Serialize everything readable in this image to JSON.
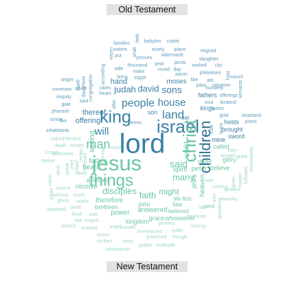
{
  "labels": {
    "top": "Old Testament",
    "bottom": "New Testament"
  },
  "colors": {
    "ot_dark": "#2b6f94",
    "ot_mid": "#3b7fa5",
    "ot_light": "#5d9bbd",
    "nt_teal": "#3fb08c",
    "nt_mid": "#6cc6a2",
    "nt_light": "#9ed9bf",
    "header_bg": "#e2e2e2"
  },
  "words": [
    {
      "t": "lord",
      "g": "ot",
      "s": "xl"
    },
    {
      "t": "jesus",
      "g": "nt",
      "s": "xl"
    },
    {
      "t": "israel",
      "g": "ot",
      "s": "l"
    },
    {
      "t": "things",
      "g": "nt",
      "s": "l"
    },
    {
      "t": "king",
      "g": "ot",
      "s": "l"
    },
    {
      "t": "christ",
      "g": "nt",
      "s": "l"
    },
    {
      "t": "children",
      "g": "ot",
      "s": "l"
    },
    {
      "t": "land",
      "g": "ot",
      "s": "m"
    },
    {
      "t": "man",
      "g": "nt",
      "s": "m"
    },
    {
      "t": "people",
      "g": "ot",
      "s": "m"
    },
    {
      "t": "house",
      "g": "ot",
      "s": "m"
    },
    {
      "t": "sons",
      "g": "ot",
      "s": "m"
    },
    {
      "t": "will",
      "g": "ot",
      "s": "m"
    },
    {
      "t": "disciples",
      "g": "nt",
      "s": "m"
    },
    {
      "t": "faith",
      "g": "nt",
      "s": "m"
    },
    {
      "t": "said",
      "g": "nt",
      "s": "m"
    },
    {
      "t": "david",
      "g": "ot",
      "s": "m"
    },
    {
      "t": "judah",
      "g": "ot",
      "s": "m"
    },
    {
      "t": "hand",
      "g": "ot",
      "s": "m"
    },
    {
      "t": "many",
      "g": "nt",
      "s": "m"
    },
    {
      "t": "might",
      "g": "nt",
      "s": "m"
    },
    {
      "t": "moses",
      "g": "ot",
      "s": "s"
    },
    {
      "t": "offering",
      "g": "ot",
      "s": "s"
    },
    {
      "t": "thereof",
      "g": "ot",
      "s": "s"
    },
    {
      "t": "saying",
      "g": "nt",
      "s": "s"
    },
    {
      "t": "father",
      "g": "nt",
      "s": "s"
    },
    {
      "t": "heard",
      "g": "nt",
      "s": "s"
    },
    {
      "t": "spirit",
      "g": "nt",
      "s": "s"
    },
    {
      "t": "world",
      "g": "nt",
      "s": "s"
    },
    {
      "t": "peter",
      "g": "nt",
      "s": "s"
    },
    {
      "t": "jews",
      "g": "nt",
      "s": "s"
    },
    {
      "t": "heaven",
      "g": "nt",
      "s": "s"
    },
    {
      "t": "another",
      "g": "nt",
      "s": "s"
    },
    {
      "t": "receive",
      "g": "nt",
      "s": "s"
    },
    {
      "t": "therefore",
      "g": "nt",
      "s": "s"
    },
    {
      "t": "john",
      "g": "nt",
      "s": "s"
    },
    {
      "t": "law",
      "g": "nt",
      "s": "s"
    },
    {
      "t": "life",
      "g": "nt",
      "s": "s"
    },
    {
      "t": "first",
      "g": "nt",
      "s": "s"
    },
    {
      "t": "power",
      "g": "nt",
      "s": "s"
    },
    {
      "t": "kingdom",
      "g": "nt",
      "s": "s"
    },
    {
      "t": "brethren",
      "g": "nt",
      "s": "s"
    },
    {
      "t": "grace",
      "g": "nt",
      "s": "s"
    },
    {
      "t": "whosoever",
      "g": "nt",
      "s": "s"
    },
    {
      "t": "answered",
      "g": "nt",
      "s": "s"
    },
    {
      "t": "believed",
      "g": "nt",
      "s": "s"
    },
    {
      "t": "dead",
      "g": "nt",
      "s": "s"
    },
    {
      "t": "called",
      "g": "nt",
      "s": "s"
    },
    {
      "t": "glory",
      "g": "nt",
      "s": "s"
    },
    {
      "t": "believe",
      "g": "nt",
      "s": "s"
    },
    {
      "t": "mine",
      "g": "ot",
      "s": "s"
    },
    {
      "t": "son",
      "g": "ot",
      "s": "s"
    },
    {
      "t": "set",
      "g": "ot",
      "s": "s"
    },
    {
      "t": "kings",
      "g": "ot",
      "s": "s"
    },
    {
      "t": "fathers",
      "g": "ot",
      "s": "s"
    },
    {
      "t": "brought",
      "g": "ot",
      "s": "s"
    },
    {
      "t": "hosts",
      "g": "ot",
      "s": "s"
    },
    {
      "t": "sword",
      "g": "ot",
      "s": "s"
    },
    {
      "t": "sent",
      "g": "nt",
      "s": "s"
    },
    {
      "t": "cities",
      "g": "ot",
      "s": "xs"
    },
    {
      "t": "heart",
      "g": "ot",
      "s": "xs"
    },
    {
      "t": "silver",
      "g": "ot",
      "s": "xs"
    },
    {
      "t": "covenant",
      "g": "ot",
      "s": "xs"
    },
    {
      "t": "gate",
      "g": "ot",
      "s": "xs"
    },
    {
      "t": "saul",
      "g": "ot",
      "s": "xs"
    },
    {
      "t": "iniquity",
      "g": "ot",
      "s": "xs"
    },
    {
      "t": "pharaoh",
      "g": "ot",
      "s": "xs"
    },
    {
      "t": "smote",
      "g": "ot",
      "s": "xs"
    },
    {
      "t": "two",
      "g": "ot",
      "s": "xs"
    },
    {
      "t": "inhabitants",
      "g": "ot",
      "s": "xs"
    },
    {
      "t": "anger",
      "g": "ot",
      "s": "xs"
    },
    {
      "t": "families",
      "g": "ot",
      "s": "xs"
    },
    {
      "t": "babylon",
      "g": "ot",
      "s": "xs"
    },
    {
      "t": "cubits",
      "g": "ot",
      "s": "xs"
    },
    {
      "t": "waters",
      "g": "ot",
      "s": "xs"
    },
    {
      "t": "shalt",
      "g": "ot",
      "s": "xs"
    },
    {
      "t": "surely",
      "g": "ot",
      "s": "xs"
    },
    {
      "t": "place",
      "g": "ot",
      "s": "xs"
    },
    {
      "t": "reigned",
      "g": "ot",
      "s": "xs"
    },
    {
      "t": "tabernacle",
      "g": "ot",
      "s": "xs"
    },
    {
      "t": "daughter",
      "g": "ot",
      "s": "xs"
    },
    {
      "t": "princes",
      "g": "ot",
      "s": "xs"
    },
    {
      "t": "year",
      "g": "ot",
      "s": "xs"
    },
    {
      "t": "jacob",
      "g": "ot",
      "s": "xs"
    },
    {
      "t": "wicked",
      "g": "ot",
      "s": "xs"
    },
    {
      "t": "city",
      "g": "ot",
      "s": "xs"
    },
    {
      "t": "thousand",
      "g": "ot",
      "s": "xs"
    },
    {
      "t": "side",
      "g": "ot",
      "s": "xs"
    },
    {
      "t": "round",
      "g": "ot",
      "s": "xs"
    },
    {
      "t": "day",
      "g": "ot",
      "s": "xs"
    },
    {
      "t": "bring",
      "g": "ot",
      "s": "xs"
    },
    {
      "t": "make",
      "g": "ot",
      "s": "xs"
    },
    {
      "t": "gold",
      "g": "ot",
      "s": "xs"
    },
    {
      "t": "egypt",
      "g": "ot",
      "s": "xs"
    },
    {
      "t": "aaron",
      "g": "ot",
      "s": "xs"
    },
    {
      "t": "philistines",
      "g": "ot",
      "s": "xs"
    },
    {
      "t": "mount",
      "g": "ot",
      "s": "xs"
    },
    {
      "t": "like",
      "g": "ot",
      "s": "xs"
    },
    {
      "t": "ark",
      "g": "ot",
      "s": "xs"
    },
    {
      "t": "hundred",
      "g": "ot",
      "s": "xs"
    },
    {
      "t": "soul",
      "g": "ot",
      "s": "xs"
    },
    {
      "t": "lordand",
      "g": "ot",
      "s": "xs"
    },
    {
      "t": "levites",
      "g": "ot",
      "s": "xs"
    },
    {
      "t": "offerings",
      "g": "ot",
      "s": "xs"
    },
    {
      "t": "israeland",
      "g": "ot",
      "s": "xs"
    },
    {
      "t": "priest",
      "g": "ot",
      "s": "xs"
    },
    {
      "t": "pass",
      "g": "ot",
      "s": "xs"
    },
    {
      "t": "solomon",
      "g": "ot",
      "s": "xs"
    },
    {
      "t": "dwell",
      "g": "ot",
      "s": "xs"
    },
    {
      "t": "daughters",
      "g": "ot",
      "s": "xs"
    },
    {
      "t": "congregation",
      "g": "ot",
      "s": "xs"
    },
    {
      "t": "according",
      "g": "ot",
      "s": "xs"
    },
    {
      "t": "servants",
      "g": "ot",
      "s": "xs"
    },
    {
      "t": "host",
      "g": "ot",
      "s": "xs"
    },
    {
      "t": "return",
      "g": "ot",
      "s": "xs"
    },
    {
      "t": "put",
      "g": "ot",
      "s": "xs"
    },
    {
      "t": "field",
      "g": "ot",
      "s": "xs"
    },
    {
      "t": "offerfire",
      "g": "ot",
      "s": "xs"
    },
    {
      "t": "altar",
      "g": "ot",
      "s": "xs"
    },
    {
      "t": "burnt",
      "g": "ot",
      "s": "xs"
    },
    {
      "t": "tribe",
      "g": "ot",
      "s": "xs"
    },
    {
      "t": "asked",
      "g": "nt",
      "s": "xs"
    },
    {
      "t": "himand",
      "g": "nt",
      "s": "xs"
    },
    {
      "t": "death",
      "g": "nt",
      "s": "xs"
    },
    {
      "t": "written",
      "g": "nt",
      "s": "xs"
    },
    {
      "t": "pharisees",
      "g": "nt",
      "s": "xs"
    },
    {
      "t": "twelve",
      "g": "nt",
      "s": "xs"
    },
    {
      "t": "known",
      "g": "nt",
      "s": "xs"
    },
    {
      "t": "speak",
      "g": "nt",
      "s": "xs"
    },
    {
      "t": "gospel",
      "g": "nt",
      "s": "xs"
    },
    {
      "t": "devil",
      "g": "nt",
      "s": "xs"
    },
    {
      "t": "chief",
      "g": "nt",
      "s": "xs"
    },
    {
      "t": "rather",
      "g": "nt",
      "s": "xs"
    },
    {
      "t": "pilate",
      "g": "nt",
      "s": "xs"
    },
    {
      "t": "church",
      "g": "nt",
      "s": "xs"
    },
    {
      "t": "without",
      "g": "nt",
      "s": "xs"
    },
    {
      "t": "much",
      "g": "nt",
      "s": "xs"
    },
    {
      "t": "ghost",
      "g": "nt",
      "s": "xs"
    },
    {
      "t": "works",
      "g": "nt",
      "s": "xs"
    },
    {
      "t": "word",
      "g": "nt",
      "s": "xs"
    },
    {
      "t": "departed",
      "g": "nt",
      "s": "xs"
    },
    {
      "t": "flesh",
      "g": "nt",
      "s": "xs"
    },
    {
      "t": "cast",
      "g": "nt",
      "s": "xs"
    },
    {
      "t": "ask",
      "g": "nt",
      "s": "xs"
    },
    {
      "t": "angels",
      "g": "nt",
      "s": "xs"
    },
    {
      "t": "preach",
      "g": "nt",
      "s": "xs"
    },
    {
      "t": "entered",
      "g": "nt",
      "s": "xs"
    },
    {
      "t": "angel",
      "g": "nt",
      "s": "xs"
    },
    {
      "t": "cometh",
      "g": "nt",
      "s": "xs"
    },
    {
      "t": "simon",
      "g": "nt",
      "s": "xs"
    },
    {
      "t": "scribes",
      "g": "nt",
      "s": "xs"
    },
    {
      "t": "mary",
      "g": "nt",
      "s": "xs"
    },
    {
      "t": "whatsoever",
      "g": "nt",
      "s": "xs"
    },
    {
      "t": "galilee",
      "g": "nt",
      "s": "xs"
    },
    {
      "t": "multitude",
      "g": "nt",
      "s": "xs"
    },
    {
      "t": "preached",
      "g": "nt",
      "s": "xs"
    },
    {
      "t": "though",
      "g": "nt",
      "s": "xs"
    },
    {
      "t": "knewraised",
      "g": "nt",
      "s": "xs"
    },
    {
      "t": "suffer",
      "g": "nt",
      "s": "xs"
    },
    {
      "t": "gentiles",
      "g": "nt",
      "s": "xs"
    },
    {
      "t": "coming",
      "g": "nt",
      "s": "xs"
    },
    {
      "t": "baptized",
      "g": "nt",
      "s": "xs"
    },
    {
      "t": "sat",
      "g": "nt",
      "s": "xs"
    },
    {
      "t": "yet",
      "g": "nt",
      "s": "xs"
    },
    {
      "t": "worthy",
      "g": "nt",
      "s": "xs"
    },
    {
      "t": "apostles",
      "g": "nt",
      "s": "xs"
    },
    {
      "t": "godand",
      "g": "nt",
      "s": "xs"
    },
    {
      "t": "master",
      "g": "nt",
      "s": "xs"
    },
    {
      "t": "given",
      "g": "nt",
      "s": "xs"
    },
    {
      "t": "followed",
      "g": "nt",
      "s": "xs"
    },
    {
      "t": "immediately",
      "g": "nt",
      "s": "xs"
    },
    {
      "t": "great",
      "g": "nt",
      "s": "xs"
    },
    {
      "t": "holy",
      "g": "nt",
      "s": "xs"
    },
    {
      "t": "temple",
      "g": "nt",
      "s": "xs"
    },
    {
      "t": "nothing",
      "g": "nt",
      "s": "xs"
    },
    {
      "t": "lest",
      "g": "nt",
      "s": "xs"
    },
    {
      "t": "must",
      "g": "nt",
      "s": "xs"
    },
    {
      "t": "know",
      "g": "nt",
      "s": "xs"
    },
    {
      "t": "certain",
      "g": "nt",
      "s": "xs"
    },
    {
      "t": "received",
      "g": "nt",
      "s": "xs"
    },
    {
      "t": "saw",
      "g": "nt",
      "s": "xs"
    },
    {
      "t": "also",
      "g": "nt",
      "s": "xs"
    }
  ]
}
